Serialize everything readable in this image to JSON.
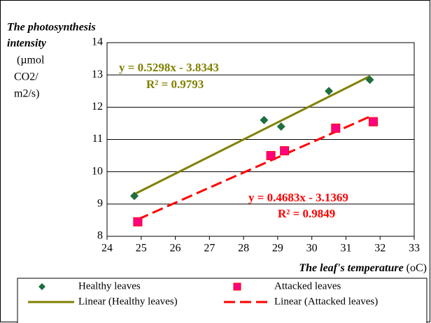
{
  "chart_data": {
    "type": "scatter",
    "y_label": [
      "The photosynthesis",
      "intensity"
    ],
    "y_unit": [
      "(µmol",
      "CO2/",
      "m2/s)"
    ],
    "x_label": "The leaf's temperature",
    "x_unit": "(oC)",
    "xlim": [
      24,
      33
    ],
    "xticks": [
      24,
      25,
      26,
      27,
      28,
      29,
      30,
      31,
      32,
      33
    ],
    "ylim": [
      8,
      14
    ],
    "yticks": [
      8,
      9,
      10,
      11,
      12,
      13,
      14
    ],
    "grid": true,
    "series": [
      {
        "name": "Healthy leaves",
        "marker": "diamond",
        "color": "#1f6e3e",
        "x": [
          24.8,
          28.6,
          29.1,
          30.5,
          31.7
        ],
        "values": [
          9.25,
          11.6,
          11.4,
          12.5,
          12.85
        ]
      },
      {
        "name": "Attacked leaves",
        "marker": "square",
        "color": "#ff0080",
        "x": [
          24.9,
          28.8,
          29.2,
          30.7,
          31.8
        ],
        "values": [
          8.45,
          10.5,
          10.65,
          11.35,
          11.55
        ]
      },
      {
        "name": "Linear (Healthy leaves)",
        "marker": "line",
        "color": "#808000",
        "x": [
          24.8,
          31.7
        ],
        "values": [
          9.305,
          12.96
        ]
      },
      {
        "name": "Linear (Attacked leaves)",
        "marker": "dashed",
        "color": "#ff0000",
        "x": [
          24.9,
          31.8
        ],
        "values": [
          8.524,
          11.755
        ]
      }
    ],
    "annotations": [
      {
        "text": "y = 0.5298x - 3.8343",
        "color": "#808000"
      },
      {
        "text": "R² = 0.9793",
        "color": "#808000"
      },
      {
        "text": "y = 0.4683x - 3.1369",
        "color": "#ff0000"
      },
      {
        "text": "R² = 0.9849",
        "color": "#ff0000"
      }
    ]
  }
}
